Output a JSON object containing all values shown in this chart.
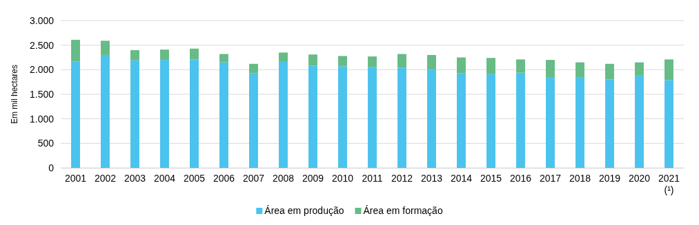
{
  "chart_data": {
    "type": "bar",
    "stacked": true,
    "ylabel": "Em mil hectares",
    "categories": [
      "2001",
      "2002",
      "2003",
      "2004",
      "2005",
      "2006",
      "2007",
      "2008",
      "2009",
      "2010",
      "2011",
      "2012",
      "2013",
      "2014",
      "2015",
      "2016",
      "2017",
      "2018",
      "2019",
      "2020",
      "2021\n(¹)"
    ],
    "series": [
      {
        "name": "Área em produção",
        "color": "#4ac3ee",
        "values": [
          2170,
          2300,
          2190,
          2200,
          2210,
          2150,
          1930,
          2160,
          2080,
          2070,
          2050,
          2040,
          2000,
          1930,
          1910,
          1940,
          1850,
          1850,
          1800,
          1880,
          1790
        ]
      },
      {
        "name": "Área em formação",
        "color": "#66bb86",
        "values": [
          440,
          290,
          210,
          210,
          220,
          170,
          190,
          190,
          230,
          210,
          220,
          280,
          300,
          320,
          330,
          270,
          350,
          300,
          320,
          270,
          420
        ]
      }
    ],
    "ylim": [
      0,
      3000
    ],
    "yticks": [
      {
        "value": 0,
        "label": "0"
      },
      {
        "value": 500,
        "label": "500"
      },
      {
        "value": 1000,
        "label": "1.000"
      },
      {
        "value": 1500,
        "label": "1.500"
      },
      {
        "value": 2000,
        "label": "2.000"
      },
      {
        "value": 2500,
        "label": "2.500"
      },
      {
        "value": 3000,
        "label": "3.000"
      }
    ],
    "grid": "y",
    "legend": "bottom"
  }
}
